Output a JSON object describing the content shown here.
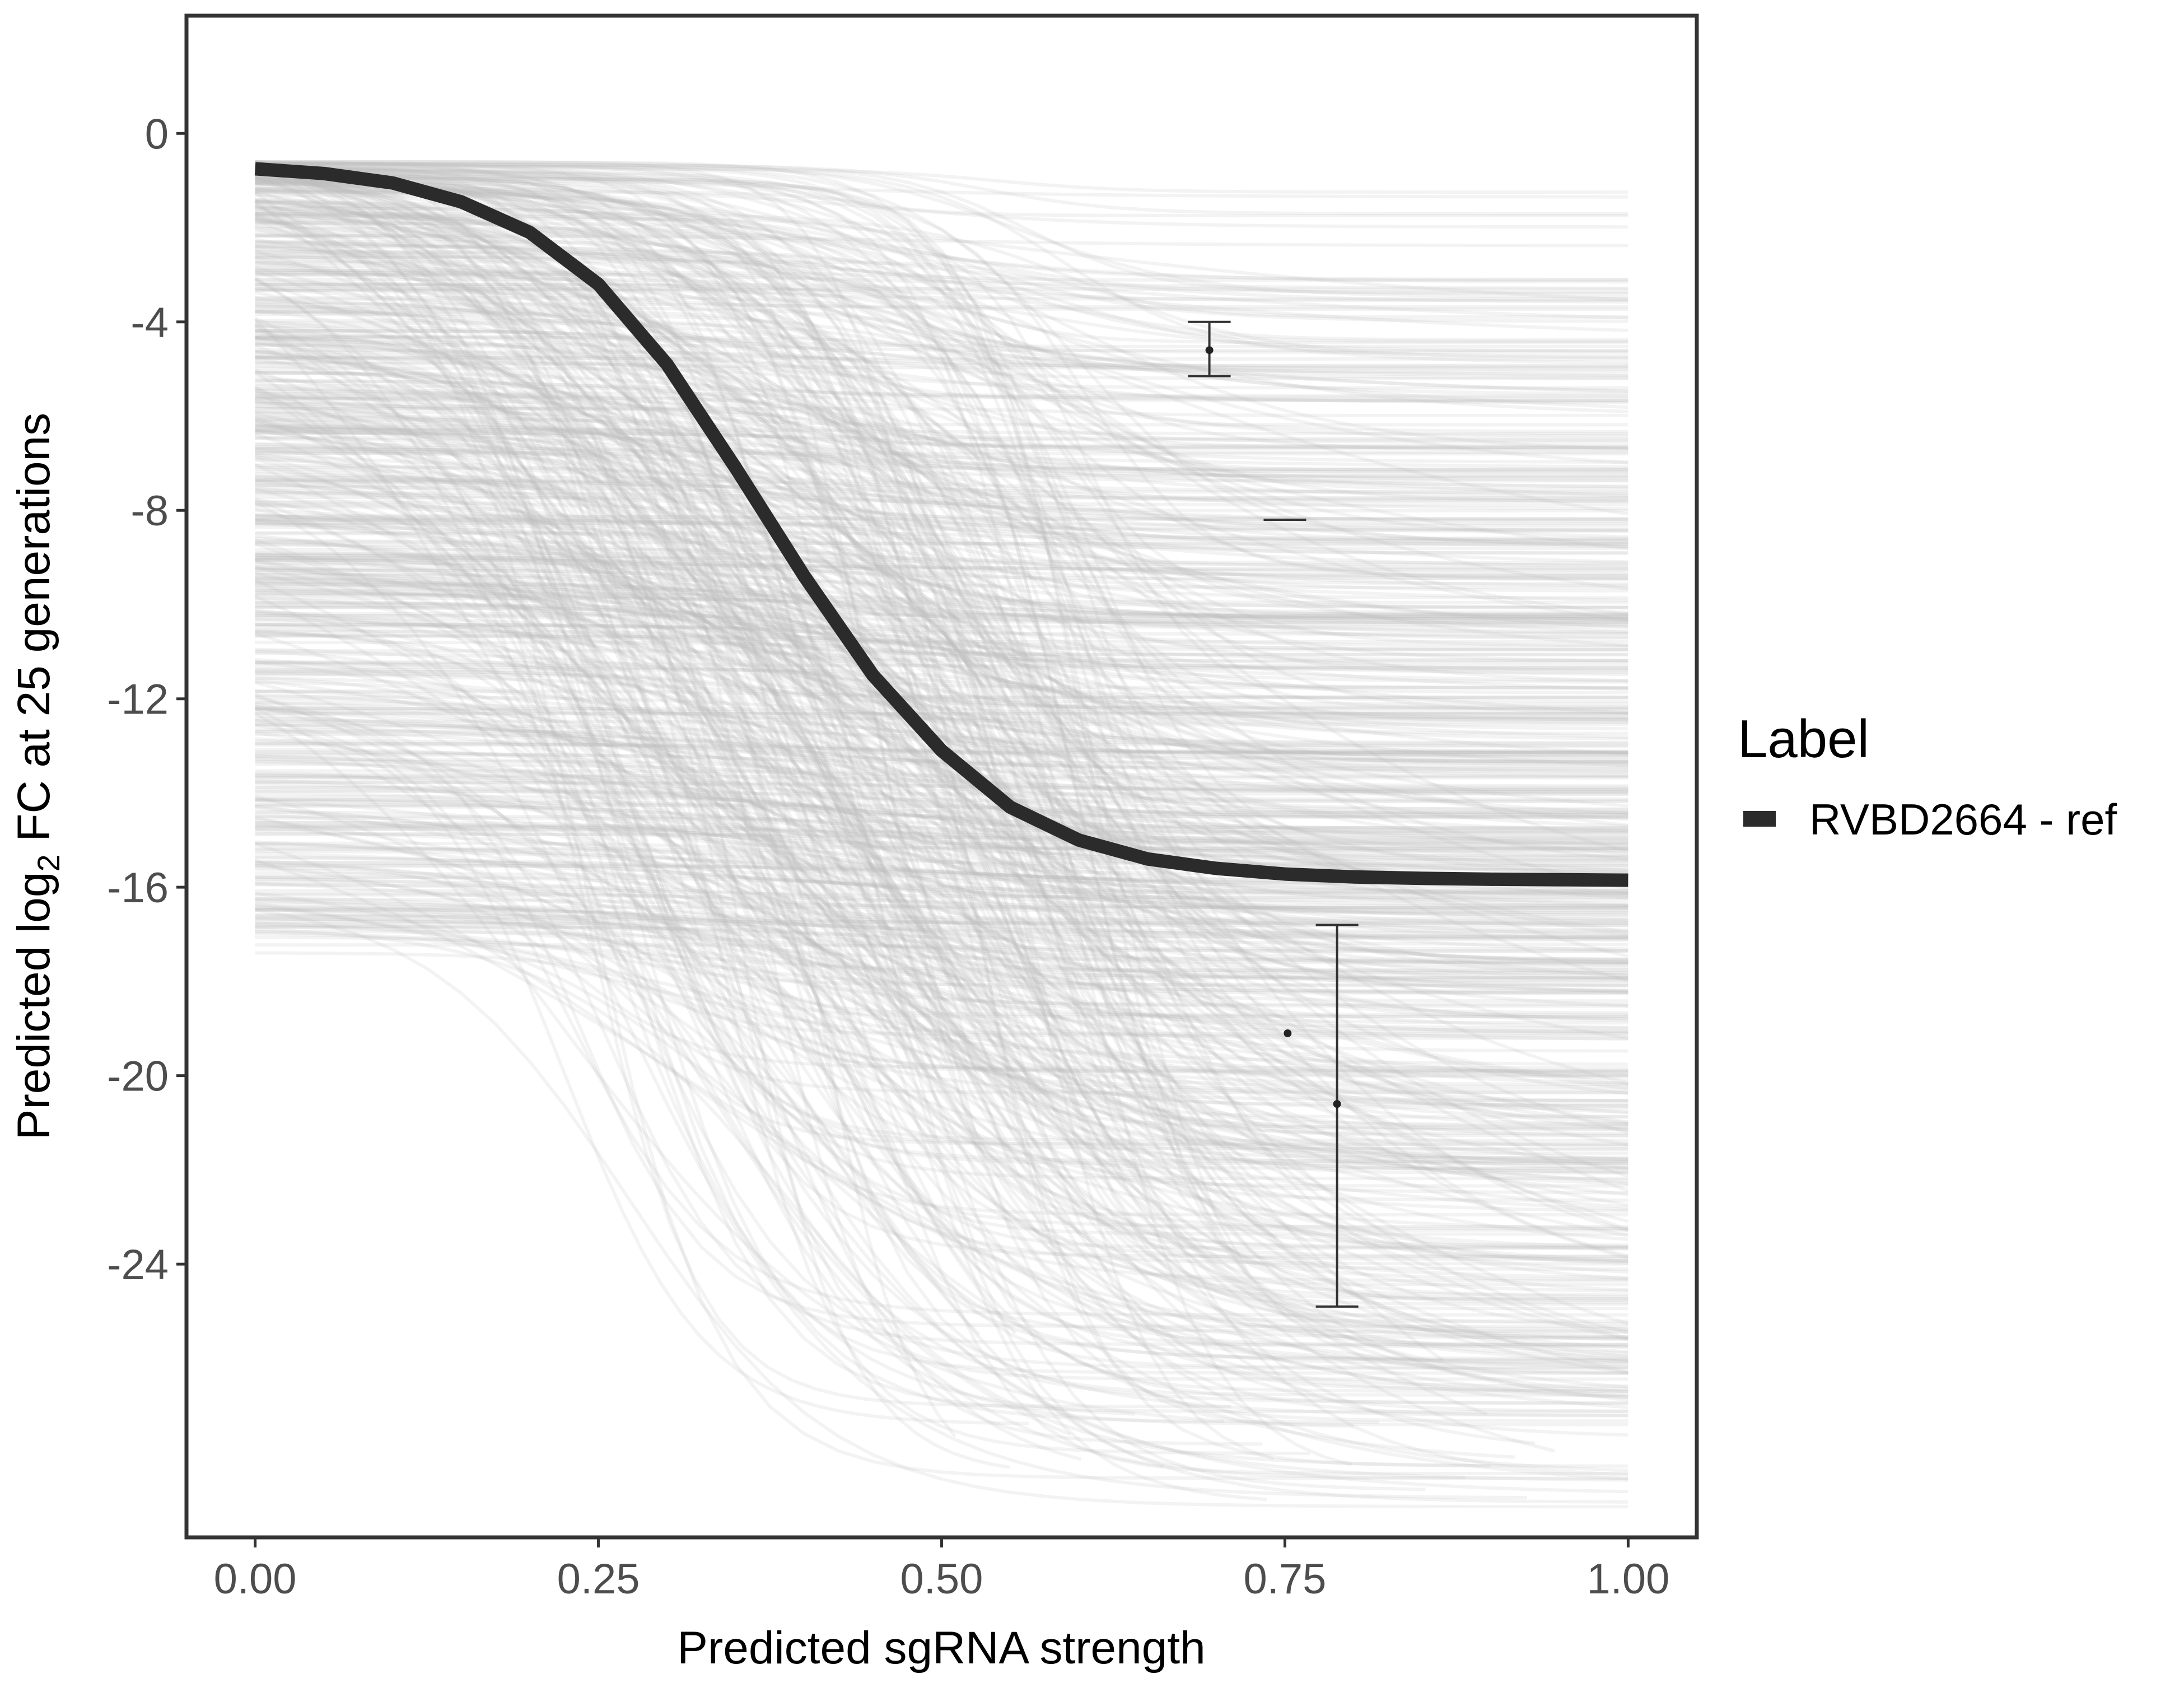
{
  "chart_data": {
    "type": "line",
    "xlabel": "Predicted sgRNA strength",
    "ylabel_prefix": "Predicted  log",
    "ylabel_subscript": "2",
    "ylabel_suffix": " FC at 25 generations",
    "xlim": [
      -0.05,
      1.05
    ],
    "ylim": [
      -29.8,
      2.5
    ],
    "x_ticks": [
      0,
      0.25,
      0.5,
      0.75,
      1
    ],
    "x_tick_labels": [
      "0.00",
      "0.25",
      "0.50",
      "0.75",
      "1.00"
    ],
    "y_ticks": [
      0,
      -4,
      -8,
      -12,
      -16,
      -20,
      -24
    ],
    "y_tick_labels": [
      "0",
      "-4",
      "-8",
      "-12",
      "-16",
      "-20",
      "-24"
    ],
    "grid": false,
    "legend": {
      "title": "Label",
      "position": "right",
      "entries": [
        {
          "label": "RVBD2664 - ref",
          "color": "#2b2b2b"
        }
      ]
    },
    "series": [
      {
        "name": "RVBD2664 - ref",
        "color": "#2b2b2b",
        "x": [
          0,
          0.05,
          0.1,
          0.15,
          0.2,
          0.25,
          0.3,
          0.35,
          0.4,
          0.45,
          0.5,
          0.55,
          0.6,
          0.65,
          0.7,
          0.75,
          0.8,
          0.85,
          0.9,
          0.95,
          1
        ],
        "y": [
          -0.75,
          -0.85,
          -1.05,
          -1.45,
          -2.1,
          -3.2,
          -4.9,
          -7.1,
          -9.4,
          -11.5,
          -13.1,
          -14.3,
          -15.0,
          -15.4,
          -15.6,
          -15.72,
          -15.78,
          -15.81,
          -15.83,
          -15.84,
          -15.85
        ]
      }
    ],
    "background_curves": {
      "count": 700,
      "color": "#bdbdbd",
      "start_range": [
        -17.5,
        -0.6
      ],
      "end_range": [
        -29.2,
        -1.0
      ]
    },
    "errorbars": [
      {
        "x": 0.695,
        "y": -4.6,
        "ymin": -5.15,
        "ymax": -4.0
      },
      {
        "x": 0.75,
        "y": -8.2,
        "ymin": -8.2,
        "ymax": -8.2
      },
      {
        "x": 0.788,
        "y": -20.6,
        "ymin": -24.9,
        "ymax": -16.8
      }
    ],
    "points": [
      {
        "x": 0.752,
        "y": -19.1
      }
    ]
  },
  "colors": {
    "highlight": "#2b2b2b",
    "background_curve": "#bdbdbd",
    "panel_border": "#333333",
    "tick_text": "#4d4d4d"
  }
}
